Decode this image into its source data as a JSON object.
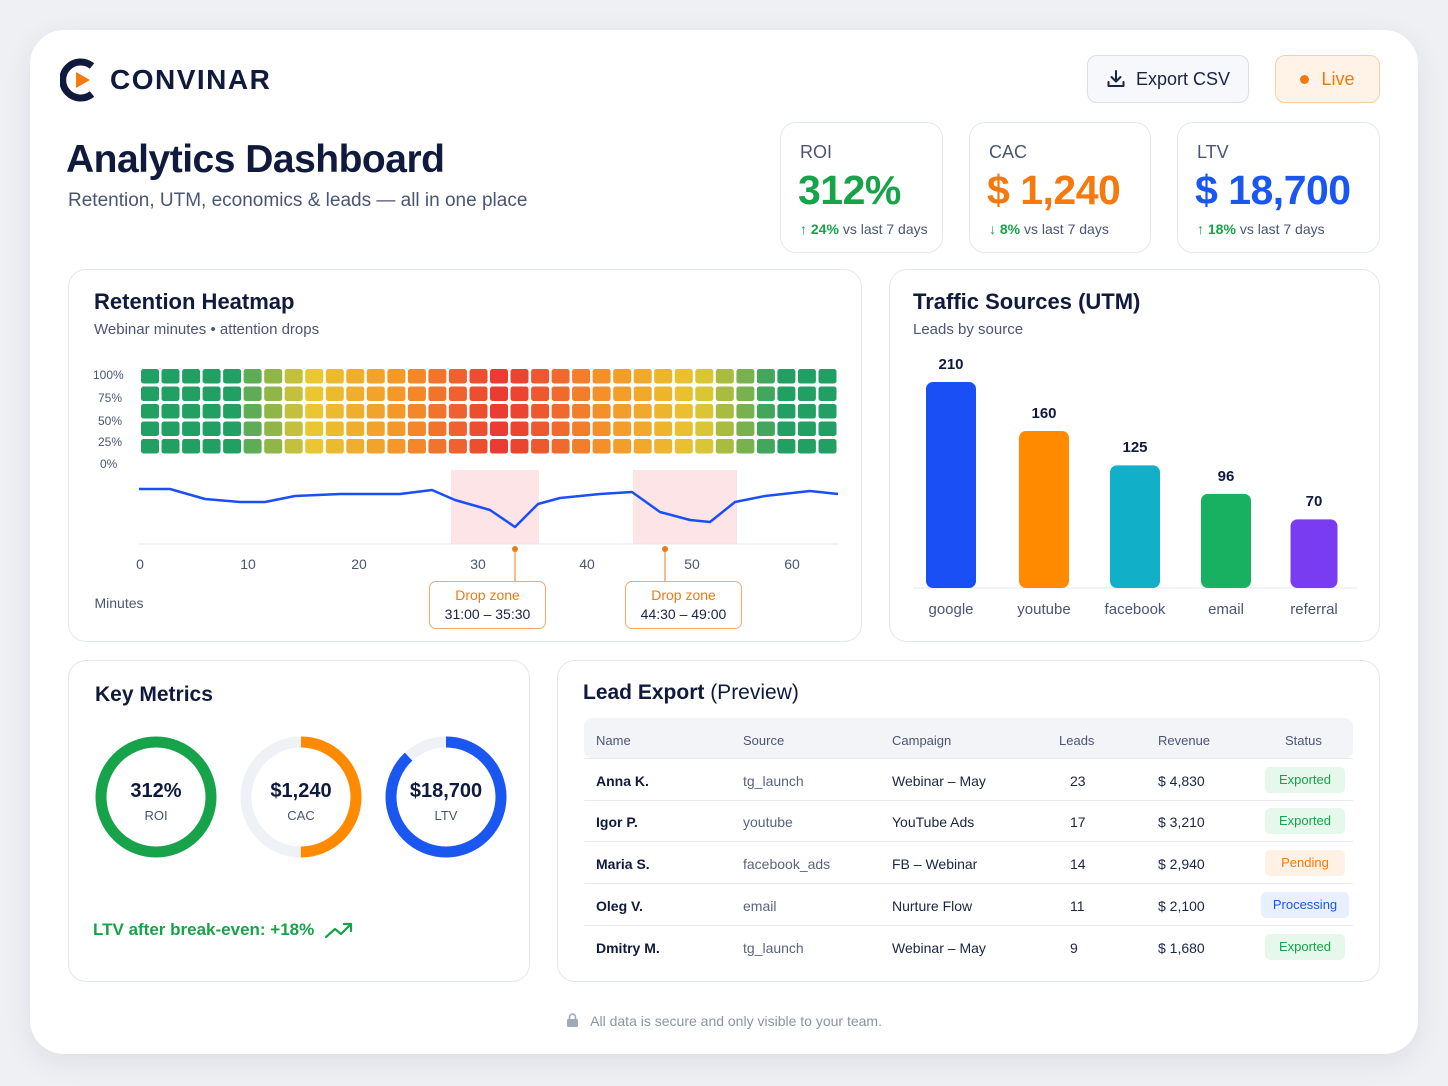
{
  "brand": {
    "name": "CONVINAR"
  },
  "header": {
    "export_label": "Export CSV",
    "live_label": "Live"
  },
  "page": {
    "title": "Analytics Dashboard",
    "subtitle": "Retention, UTM, economics & leads — all in one place"
  },
  "kpis": [
    {
      "label": "ROI",
      "value": "312%",
      "change": "24%",
      "direction": "up",
      "suffix": "vs last 7 days",
      "color": "#16a34a"
    },
    {
      "label": "CAC",
      "value": "$ 1,240",
      "change": "8%",
      "direction": "down",
      "suffix": "vs last 7 days",
      "color": "#f47a0f"
    },
    {
      "label": "LTV",
      "value": "$ 18,700",
      "change": "18%",
      "direction": "up",
      "suffix": "vs last 7 days",
      "color": "#1a56f0"
    }
  ],
  "heatmap": {
    "title": "Retention Heatmap",
    "subtitle": "Webinar minutes • attention drops",
    "y_ticks": [
      "100%",
      "75%",
      "50%",
      "25%",
      "0%"
    ],
    "x_ticks": [
      "0",
      "10",
      "20",
      "30",
      "40",
      "50",
      "60"
    ],
    "x_axis_label": "Minutes",
    "drop_zones": [
      {
        "label": "Drop zone",
        "range": "31:00 – 35:30"
      },
      {
        "label": "Drop zone",
        "range": "44:30 – 49:00"
      }
    ]
  },
  "traffic": {
    "title": "Traffic Sources (UTM)",
    "subtitle": "Leads by source"
  },
  "chart_data": {
    "type": "bar",
    "title": "Traffic Sources (UTM)",
    "subtitle": "Leads by source",
    "categories": [
      "google",
      "youtube",
      "facebook",
      "email",
      "referral"
    ],
    "values": [
      210,
      160,
      125,
      96,
      70
    ],
    "colors": [
      "#1a4ff5",
      "#ff8a00",
      "#12b0c8",
      "#18b061",
      "#7a3cf0"
    ],
    "xlabel": "",
    "ylabel": "",
    "ylim": [
      0,
      210
    ],
    "grid": false,
    "legend": "none"
  },
  "key_metrics": {
    "title": "Key Metrics",
    "donuts": [
      {
        "value": "312%",
        "label": "ROI",
        "fraction": 1.0,
        "color": "#16a34a"
      },
      {
        "value": "$1,240",
        "label": "CAC",
        "fraction": 0.5,
        "color": "#ff8a00"
      },
      {
        "value": "$18,700",
        "label": "LTV",
        "fraction": 0.88,
        "color": "#1a56f0"
      }
    ],
    "note": "LTV after break-even: +18%"
  },
  "leads": {
    "title": "Lead Export",
    "title_suffix": " (Preview)",
    "columns": [
      "Name",
      "Source",
      "Campaign",
      "Leads",
      "Revenue",
      "Status"
    ],
    "rows": [
      {
        "name": "Anna K.",
        "source": "tg_launch",
        "campaign": "Webinar – May",
        "leads": "23",
        "revenue": "$ 4,830",
        "status": "Exported"
      },
      {
        "name": "Igor P.",
        "source": "youtube",
        "campaign": "YouTube Ads",
        "leads": "17",
        "revenue": "$ 3,210",
        "status": "Exported"
      },
      {
        "name": "Maria S.",
        "source": "facebook_ads",
        "campaign": "FB – Webinar",
        "leads": "14",
        "revenue": "$ 2,940",
        "status": "Pending"
      },
      {
        "name": "Oleg V.",
        "source": "email",
        "campaign": "Nurture Flow",
        "leads": "11",
        "revenue": "$ 2,100",
        "status": "Processing"
      },
      {
        "name": "Dmitry M.",
        "source": "tg_launch",
        "campaign": "Webinar – May",
        "leads": "9",
        "revenue": "$ 1,680",
        "status": "Exported"
      }
    ],
    "status_colors": {
      "Exported": {
        "bg": "#e6f7ec",
        "fg": "#16a34a"
      },
      "Pending": {
        "bg": "#fff1e3",
        "fg": "#f07a12"
      },
      "Processing": {
        "bg": "#e8efff",
        "fg": "#1a56f0"
      }
    }
  },
  "footer": {
    "text": "All data is secure and only visible to your team."
  }
}
